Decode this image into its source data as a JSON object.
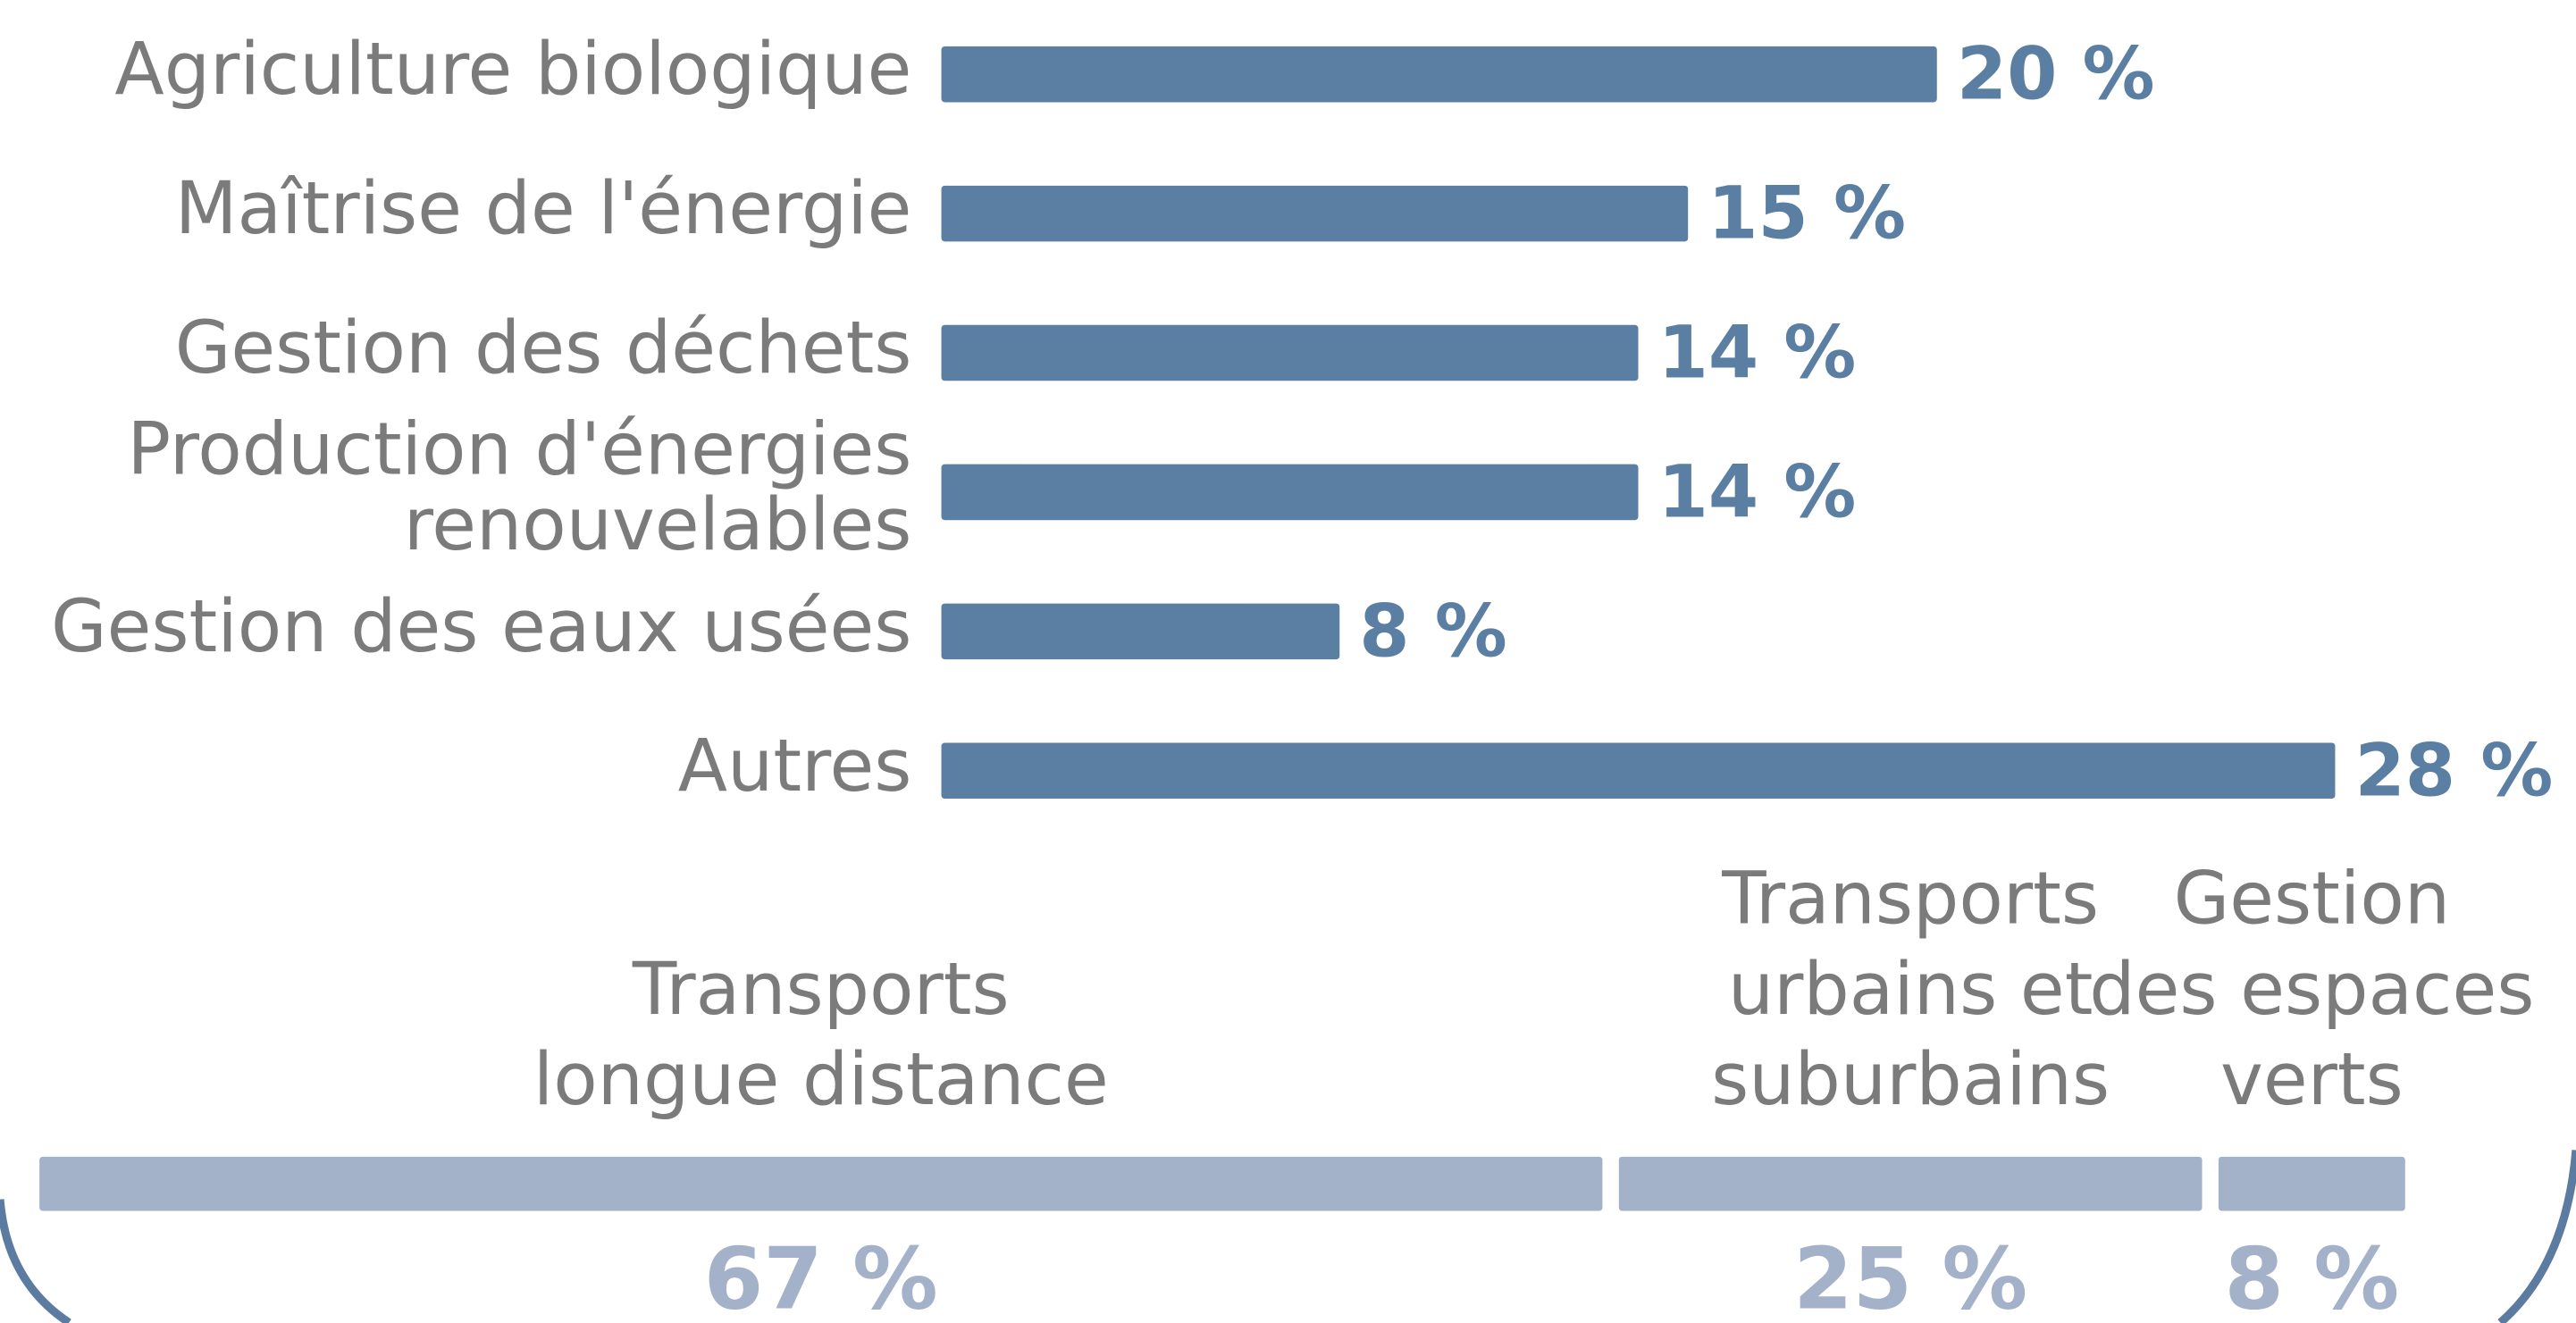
{
  "chart_data": [
    {
      "type": "bar",
      "orientation": "horizontal",
      "categories": [
        "Agriculture biologique",
        "Maîtrise de l'énergie",
        "Gestion des déchets",
        "Production d'énergies\nrenouvelables",
        "Gestion des eaux usées",
        "Autres"
      ],
      "values": [
        20,
        15,
        14,
        14,
        8,
        28
      ],
      "value_labels": [
        "20 %",
        "15 %",
        "14 %",
        "14 %",
        "8 %",
        "28 %"
      ],
      "color": "#5b7fa3"
    },
    {
      "type": "stacked_bar",
      "orientation": "horizontal",
      "categories": [
        "Transports\nlongue distance",
        "Transports\nurbains et\nsuburbains",
        "Gestion\ndes espaces\nverts"
      ],
      "values": [
        67,
        25,
        8
      ],
      "value_labels": [
        "67 %",
        "25 %",
        "8 %"
      ],
      "color": "#a3b1c9"
    }
  ]
}
